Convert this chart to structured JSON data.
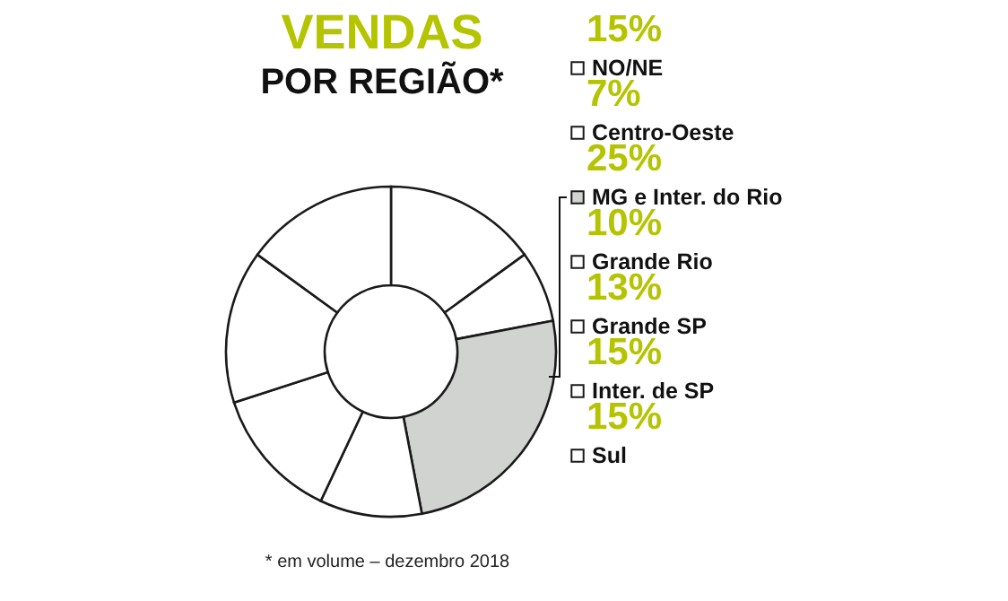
{
  "chart_data": {
    "type": "donut",
    "title": "VENDAS",
    "subtitle": "POR REGIÃO*",
    "categories": [
      "NO/NE",
      "Centro-Oeste",
      "MG e Inter. do Rio",
      "Grande Rio",
      "Grande SP",
      "Inter. de SP",
      "Sul"
    ],
    "values": [
      15,
      7,
      25,
      10,
      13,
      15,
      15
    ],
    "value_labels": [
      "15%",
      "7%",
      "25%",
      "10%",
      "13%",
      "15%",
      "15%"
    ],
    "colors": [
      "#ffffff",
      "#ffffff",
      "#d0d3d0",
      "#ffffff",
      "#ffffff",
      "#ffffff",
      "#ffffff"
    ],
    "annotations": [
      "* em volume – dezembro 2018"
    ],
    "legend": "right"
  }
}
